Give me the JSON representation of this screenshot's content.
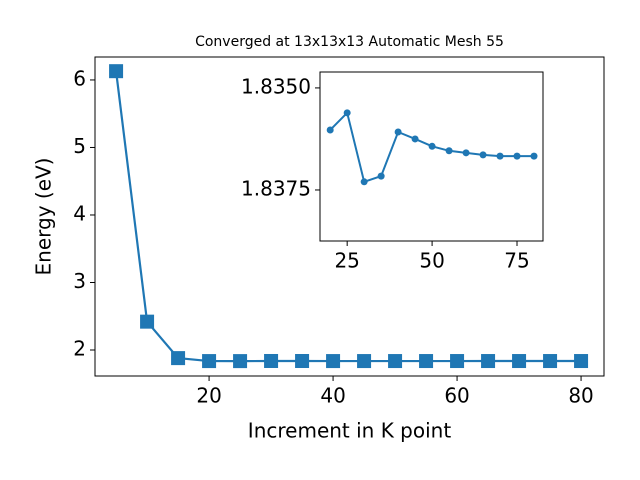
{
  "chart_data": [
    {
      "type": "line",
      "title": "Converged at 13x13x13 Automatic Mesh 55",
      "xlabel": "Increment in K point",
      "ylabel": "Energy (eV)",
      "x": [
        5,
        10,
        15,
        20,
        25,
        30,
        35,
        40,
        45,
        50,
        55,
        60,
        65,
        70,
        75,
        80
      ],
      "series": [
        {
          "color": "#1f77b4",
          "marker": "square",
          "values": [
            6.13,
            2.42,
            1.88,
            1.83603,
            1.83561,
            1.8373,
            1.83716,
            1.83608,
            1.83625,
            1.83643,
            1.83654,
            1.83659,
            1.83664,
            1.83667,
            1.83667,
            1.83667
          ]
        }
      ],
      "xlim": [
        1.6,
        83.7
      ],
      "ylim": [
        1.615,
        6.34
      ],
      "xticks": [
        20,
        40,
        60,
        80
      ],
      "yticks": [
        2,
        3,
        4,
        5,
        6
      ]
    },
    {
      "type": "line",
      "x": [
        20,
        25,
        30,
        35,
        40,
        45,
        50,
        55,
        60,
        65,
        70,
        75,
        80
      ],
      "series": [
        {
          "color": "#1f77b4",
          "marker": "circle",
          "values": [
            1.83603,
            1.83561,
            1.8373,
            1.83716,
            1.83608,
            1.83625,
            1.83643,
            1.83654,
            1.83659,
            1.83664,
            1.83667,
            1.83667,
            1.83667
          ]
        }
      ],
      "xlim": [
        17,
        82.65
      ],
      "ylim": [
        1.83875,
        1.83461
      ],
      "xticks": [
        25,
        50,
        75
      ],
      "yticks": [
        {
          "value": 1.835,
          "label": "1.8350"
        },
        {
          "value": 1.8375,
          "label": "1.8375"
        }
      ]
    }
  ]
}
